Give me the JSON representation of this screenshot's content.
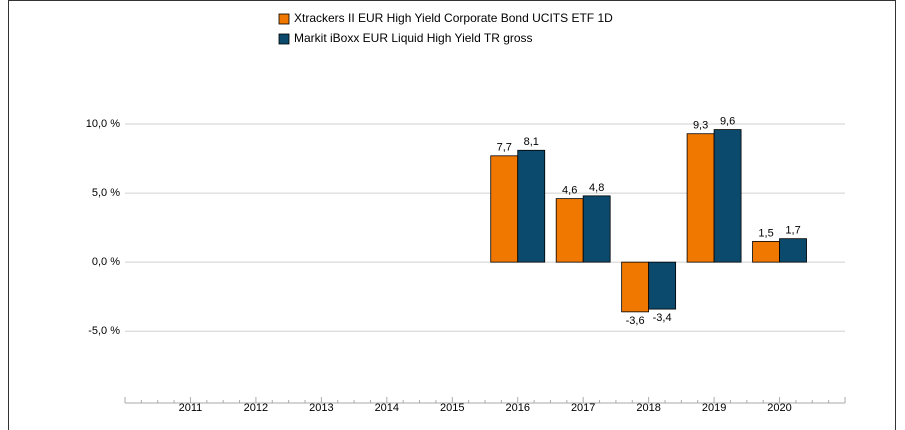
{
  "chart_data": {
    "type": "bar",
    "categories": [
      "2011",
      "2012",
      "2013",
      "2014",
      "2015",
      "2016",
      "2017",
      "2018",
      "2019",
      "2020"
    ],
    "series": [
      {
        "name": "Xtrackers II EUR High Yield Corporate Bond UCITS ETF  1D",
        "color": "#f07800",
        "values": [
          null,
          null,
          null,
          null,
          null,
          7.7,
          4.6,
          -3.6,
          9.3,
          1.5
        ],
        "value_labels": [
          null,
          null,
          null,
          null,
          null,
          "7,7",
          "4,6",
          "-3,6",
          "9,3",
          "1,5"
        ]
      },
      {
        "name": "Markit iBoxx EUR Liquid High Yield TR gross",
        "color": "#0b4a6c",
        "values": [
          null,
          null,
          null,
          null,
          null,
          8.1,
          4.8,
          -3.4,
          9.6,
          1.7
        ],
        "value_labels": [
          null,
          null,
          null,
          null,
          null,
          "8,1",
          "4,8",
          "-3,4",
          "9,6",
          "1,7"
        ]
      }
    ],
    "ylim": [
      -10.2,
      15
    ],
    "yticks": [
      {
        "value": -5,
        "label": "-5,0 %"
      },
      {
        "value": 0,
        "label": "0,0 %"
      },
      {
        "value": 5,
        "label": "5,0 %"
      },
      {
        "value": 10,
        "label": "10,0 %"
      }
    ],
    "grid": true
  }
}
